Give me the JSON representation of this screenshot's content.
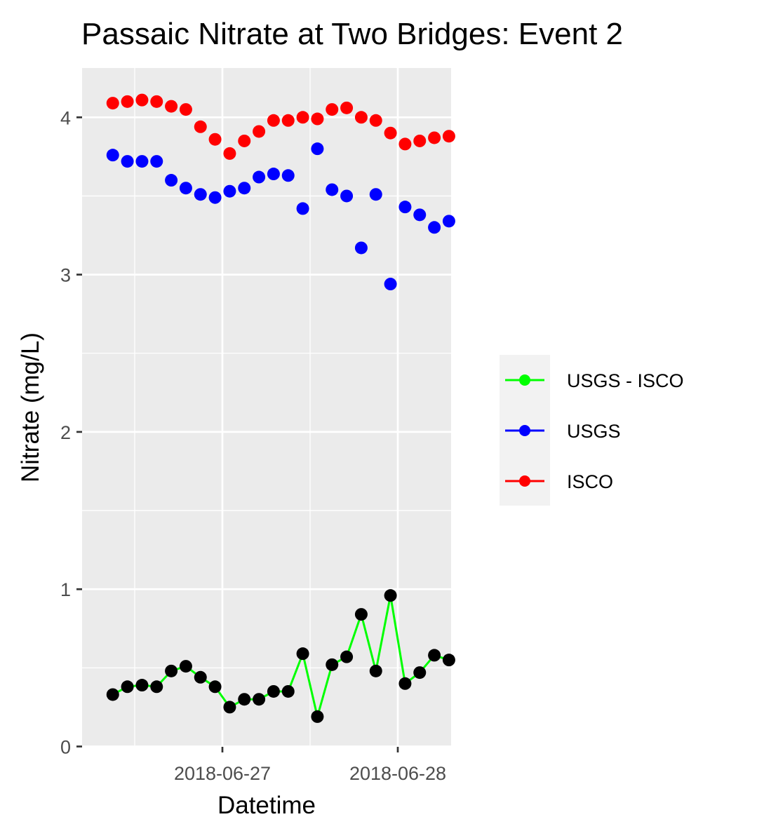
{
  "chart_data": {
    "type": "scatter",
    "title": "Passaic Nitrate at Two Bridges: Event 2",
    "xlabel": "Datetime",
    "ylabel": "Nitrate (mg/L)",
    "x_ticks": [
      "2018-06-27",
      "2018-06-28"
    ],
    "y_ticks": [
      "0",
      "1",
      "2",
      "3",
      "4"
    ],
    "ylim": [
      0,
      4.3
    ],
    "grid": true,
    "legend_position": "right",
    "legend": [
      "USGS - ISCO",
      "USGS",
      "ISCO"
    ],
    "x": [
      "2018-06-26 09:00",
      "2018-06-26 11:00",
      "2018-06-26 13:00",
      "2018-06-26 15:00",
      "2018-06-26 17:00",
      "2018-06-26 19:00",
      "2018-06-26 21:00",
      "2018-06-26 23:00",
      "2018-06-27 01:00",
      "2018-06-27 03:00",
      "2018-06-27 05:00",
      "2018-06-27 07:00",
      "2018-06-27 09:00",
      "2018-06-27 11:00",
      "2018-06-27 13:00",
      "2018-06-27 15:00",
      "2018-06-27 17:00",
      "2018-06-27 19:00",
      "2018-06-27 21:00",
      "2018-06-27 23:00",
      "2018-06-28 01:00",
      "2018-06-28 03:00",
      "2018-06-28 05:00",
      "2018-06-28 07:00"
    ],
    "series": [
      {
        "name": "USGS - ISCO",
        "color": "#00ff00",
        "point_color": "#000000",
        "style": "line+points",
        "values": [
          0.33,
          0.38,
          0.39,
          0.38,
          0.48,
          0.51,
          0.44,
          0.38,
          0.25,
          0.3,
          0.3,
          0.35,
          0.35,
          0.59,
          0.19,
          0.52,
          0.57,
          0.84,
          0.48,
          0.96,
          0.4,
          0.47,
          0.58,
          0.55
        ]
      },
      {
        "name": "USGS",
        "color": "#0000ff",
        "style": "points",
        "values": [
          3.76,
          3.72,
          3.72,
          3.72,
          3.6,
          3.55,
          3.51,
          3.49,
          3.53,
          3.55,
          3.62,
          3.64,
          3.63,
          3.42,
          3.8,
          3.54,
          3.5,
          3.17,
          3.51,
          2.94,
          3.43,
          3.38,
          3.3,
          3.34
        ]
      },
      {
        "name": "ISCO",
        "color": "#ff0000",
        "style": "points",
        "values": [
          4.09,
          4.1,
          4.11,
          4.1,
          4.07,
          4.05,
          3.94,
          3.86,
          3.77,
          3.85,
          3.91,
          3.98,
          3.98,
          4.0,
          3.99,
          4.05,
          4.06,
          4.0,
          3.98,
          3.9,
          3.83,
          3.85,
          3.87,
          3.88
        ]
      }
    ]
  }
}
